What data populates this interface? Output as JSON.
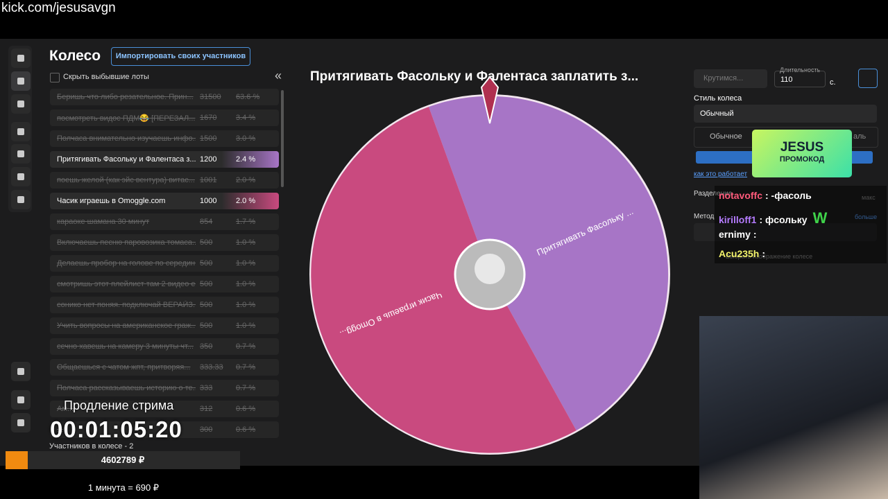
{
  "url": "kick.com/jesusavgn",
  "panel": {
    "title": "Колесо",
    "import_button": "Импортировать своих участников",
    "hide_label": "Скрыть выбывшие лоты",
    "collapse": "«",
    "lots": [
      {
        "name": "Беришь что либо резательное. Прин...",
        "amount": 31500,
        "percent": "63.6 %",
        "state": "out"
      },
      {
        "name": "посмотреть видос ПДМ😂 [ПЕРЕЗАЛ...",
        "amount": 1670,
        "percent": "3.4 %",
        "state": "out"
      },
      {
        "name": "Полчаса внимательно изучаешь инфо...",
        "amount": 1500,
        "percent": "3.0 %",
        "state": "out"
      },
      {
        "name": "Притягивать Фасольку и Фалентаса з...",
        "amount": 1200,
        "percent": "2.4 %",
        "state": "active",
        "color": "#a775c6"
      },
      {
        "name": "поешь желой (как эйс вентура) витас...",
        "amount": 1001,
        "percent": "2.0 %",
        "state": "out"
      },
      {
        "name": "Часик играешь в Omoggle.com",
        "amount": 1000,
        "percent": "2.0 %",
        "state": "active",
        "color": "#c94a7f"
      },
      {
        "name": "караоке шамана 30 минут",
        "amount": 854,
        "percent": "1.7 %",
        "state": "out"
      },
      {
        "name": "Включаешь песню паровозика томаса...",
        "amount": 500,
        "percent": "1.0 %",
        "state": "out"
      },
      {
        "name": "Делаешь пробор на голове по середин...",
        "amount": 500,
        "percent": "1.0 %",
        "state": "out"
      },
      {
        "name": "смотришь этот плейлист там 2 видео ен...",
        "amount": 500,
        "percent": "1.0 %",
        "state": "out"
      },
      {
        "name": "сонико нет поняя. подключай ВЕРАЙЗ...",
        "amount": 500,
        "percent": "1.0 %",
        "state": "out"
      },
      {
        "name": "Учить вопросы на американское граж...",
        "amount": 500,
        "percent": "1.0 %",
        "state": "out"
      },
      {
        "name": "сечно хавешь на камеру 3 минуты чт...",
        "amount": 350,
        "percent": "0.7 %",
        "state": "out"
      },
      {
        "name": "Общаешься с чатом жпт, притворяя...",
        "amount": 333.33,
        "percent": "0.7 %",
        "state": "out"
      },
      {
        "name": "Полчаса рассказываешь историю о те...",
        "amount": 333,
        "percent": "0.7 %",
        "state": "out"
      },
      {
        "name": "Ам...",
        "amount": 312,
        "percent": "0.6 %",
        "state": "out"
      },
      {
        "name": "...",
        "amount": 300,
        "percent": "0.6 %",
        "state": "out"
      }
    ],
    "participants": "Участников в колесе - 2"
  },
  "wheel": {
    "title": "Притягивать Фасольку и Фалентаса заплатить з...",
    "label_a": "Притягивать Фасольку ...",
    "label_b": "Часик играешь в Omogg..."
  },
  "settings": {
    "spin_button": "Крутимся...",
    "duration_label": "Длительность",
    "duration": 110,
    "unit": "с.",
    "style_label": "Стиль колеса",
    "style_value": "Обычный",
    "tab_normal": "Обычное",
    "tab_other": "аль",
    "how_link": "как это работает",
    "split_label": "Разделение",
    "max": "макс",
    "method_label": "Метод",
    "learn_more": "больше",
    "select_label": "Выбрать изображение колесе"
  },
  "promo": {
    "brand": "JESUS",
    "code": "ПРОМОКОД"
  },
  "chat": [
    {
      "user": "notavoffc",
      "text": ": -фасоль",
      "color": "#ff5a7a"
    },
    {
      "user": "kirilloff1",
      "text": ": фсольку",
      "color": "#b57cff",
      "emote": "W"
    },
    {
      "user": "ernimy",
      "text": ":",
      "color": "#ffffff"
    },
    {
      "user": "Acu235h",
      "text": ":",
      "color": "#f3f36b"
    }
  ],
  "overlay": {
    "extend_label": "Продление стрима",
    "timer": "00:01:05:20",
    "total": "4602789 ₽",
    "rate": "1 минута = 690 ₽"
  }
}
